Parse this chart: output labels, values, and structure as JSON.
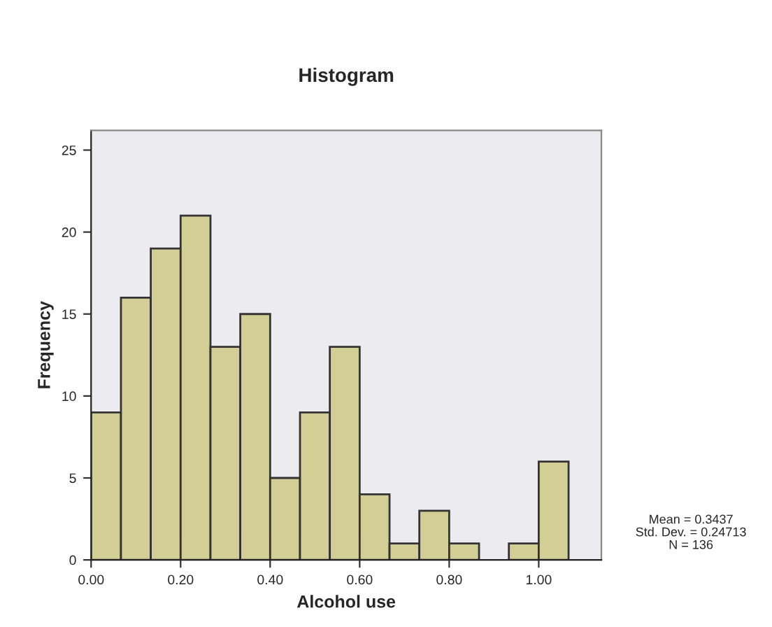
{
  "chart_data": {
    "type": "histogram",
    "title": "Histogram",
    "xlabel": "Alcohol use",
    "ylabel": "Frequency",
    "bins": [
      0,
      0.0667,
      0.1333,
      0.2,
      0.2667,
      0.3333,
      0.4,
      0.4667,
      0.5333,
      0.6,
      0.6667,
      0.7333,
      0.8,
      0.8667,
      0.9333,
      1.0,
      1.0667
    ],
    "values": [
      9,
      16,
      19,
      21,
      13,
      15,
      5,
      9,
      13,
      4,
      1,
      3,
      1,
      0,
      1,
      6
    ],
    "color": "#d3ce96",
    "xlim": [
      0,
      1.14
    ],
    "xticks": [
      {
        "value": 0,
        "label": "0.00"
      },
      {
        "value": 0.2,
        "label": "0.20"
      },
      {
        "value": 0.4,
        "label": "0.40"
      },
      {
        "value": 0.6,
        "label": "0.60"
      },
      {
        "value": 0.8,
        "label": "0.80"
      },
      {
        "value": 1.0,
        "label": "1.00"
      }
    ],
    "ylim": [
      0,
      26.2
    ],
    "yticks": [
      0,
      5,
      10,
      15,
      20,
      25
    ],
    "grid": false,
    "annotations": [
      "Mean = 0.3437\nStd. Dev. = 0.24713\nN = 136"
    ]
  }
}
